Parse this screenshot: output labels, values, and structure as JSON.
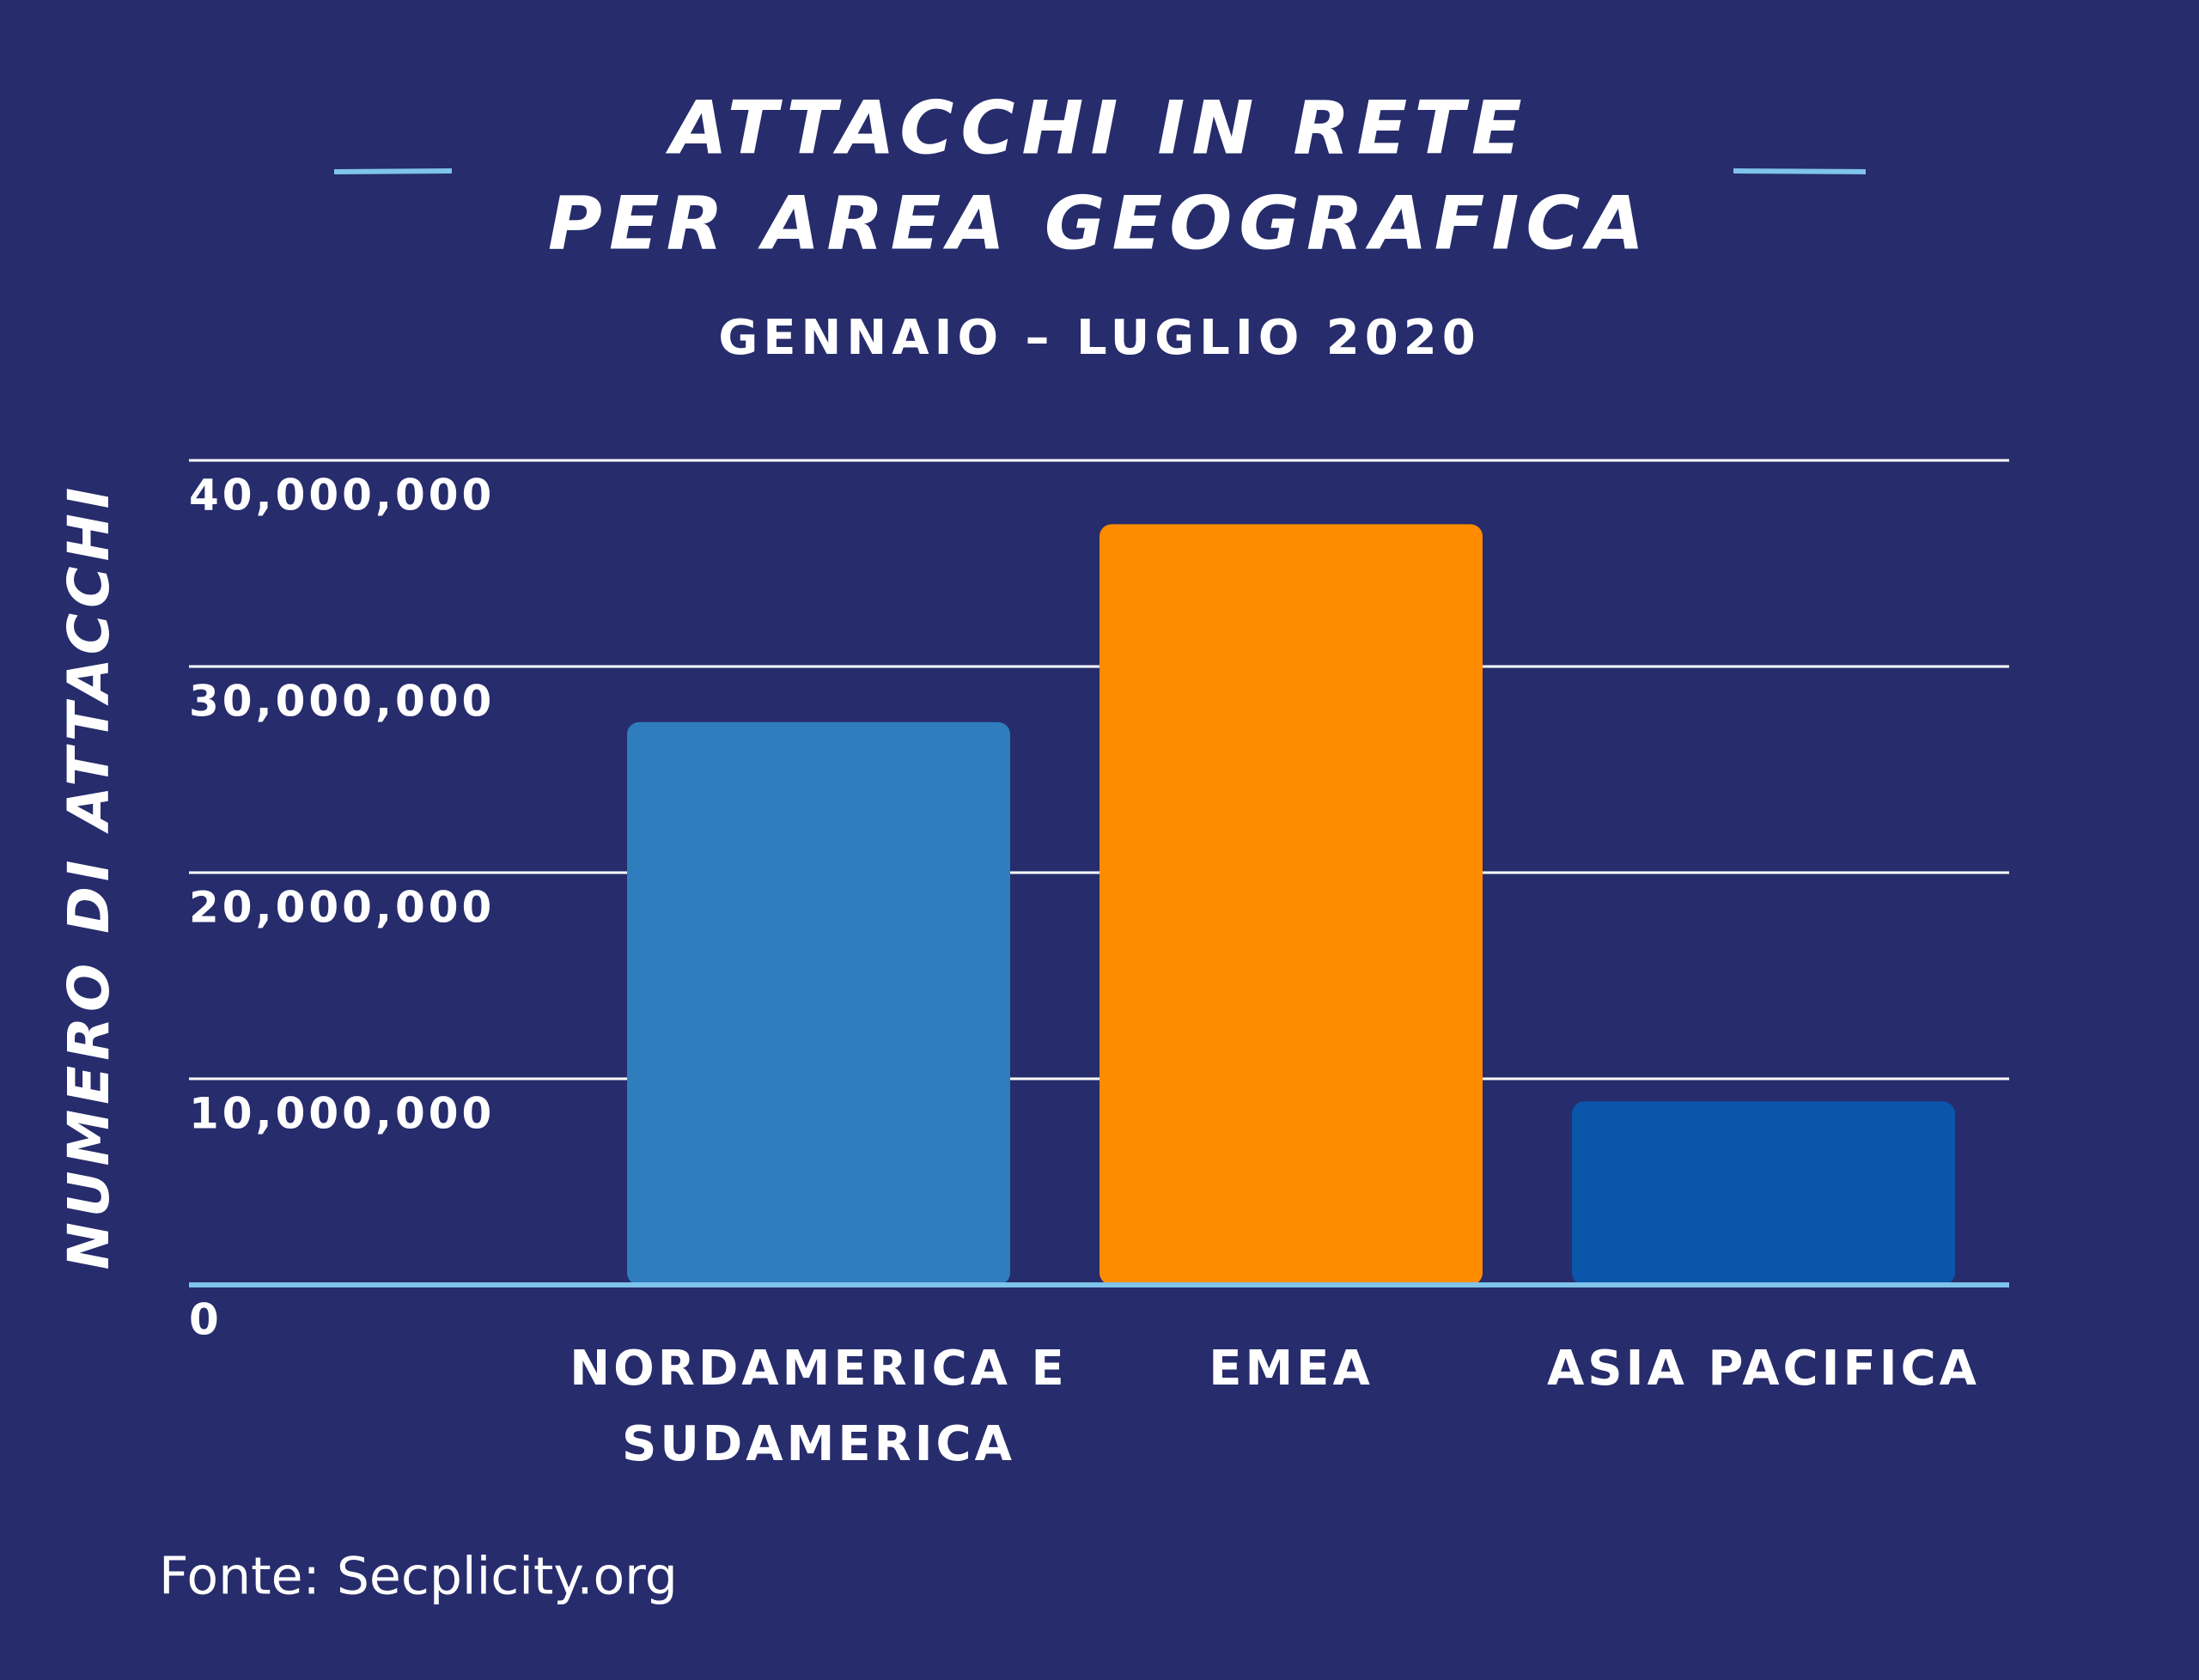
{
  "chart_data": {
    "type": "bar",
    "title_lines": [
      "ATTACCHI IN RETE",
      "PER AREA GEOGRAFICA"
    ],
    "subtitle": "GENNAIO – LUGLIO 2020",
    "y_label": "NUMERO DI ATTACCHI",
    "source": "Fonte: Secplicity.org",
    "categories": [
      "NORDAMERICA E SUDAMERICA",
      "EMEA",
      "ASIA PACIFICA"
    ],
    "values": [
      27300000,
      36900000,
      8900000
    ],
    "colors": [
      "#2f7dbd",
      "#ff8b00",
      "#0b55ab"
    ],
    "ylim": [
      0,
      40000000
    ],
    "yticks": [
      0,
      {
        "value": 10000000,
        "label": "10,000,000"
      },
      {
        "value": 20000000,
        "label": "20,000,000"
      },
      {
        "value": 30000000,
        "label": "30,000,000"
      },
      {
        "value": 40000000,
        "label": "40,000,000"
      }
    ],
    "grid": true
  }
}
